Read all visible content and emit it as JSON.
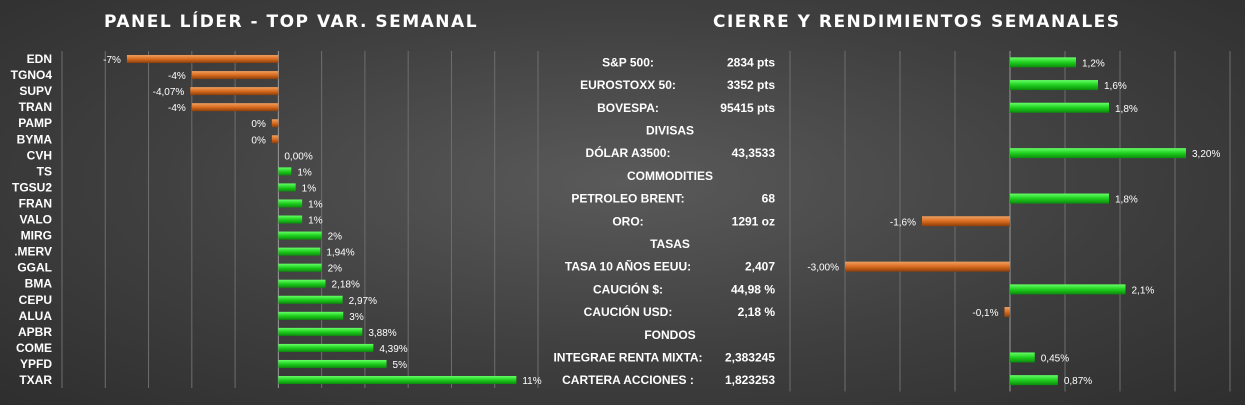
{
  "left_title": "PANEL LÍDER - TOP VAR. SEMANAL",
  "right_title": "CIERRE Y RENDIMIENTOS  SEMANALES",
  "colors": {
    "positive": "#1ecf1e",
    "negative": "#d96b1e",
    "grid": "#6e6e6e"
  },
  "chart_data": [
    {
      "type": "bar",
      "orientation": "horizontal",
      "title": "PANEL LÍDER - TOP VAR. SEMANAL",
      "categories": [
        "EDN",
        "TGNO4",
        "SUPV",
        "TRAN",
        "PAMP",
        "BYMA",
        "CVH",
        "TS",
        "TGSU2",
        "FRAN",
        "VALO",
        "MIRG",
        ".MERV",
        "GGAL",
        "BMA",
        "CEPU",
        "ALUA",
        "APBR",
        "COME",
        "YPFD",
        "TXAR"
      ],
      "values": [
        -7,
        -4,
        -4.07,
        -4,
        -0.3,
        -0.3,
        0,
        0.6,
        0.8,
        1.1,
        1.1,
        2,
        1.94,
        2,
        2.18,
        2.97,
        3,
        3.88,
        4.39,
        5,
        11
      ],
      "labels": [
        "-7%",
        "-4%",
        "-4,07%",
        "-4%",
        "0%",
        "0%",
        "0,00%",
        "1%",
        "1%",
        "1%",
        "1%",
        "2%",
        "1,94%",
        "2%",
        "2,18%",
        "2,97%",
        "3%",
        "3,88%",
        "4,39%",
        "5%",
        "11%"
      ],
      "xlim": [
        -10,
        12
      ],
      "grid": true
    },
    {
      "type": "bar",
      "orientation": "horizontal",
      "title": "CIERRE Y RENDIMIENTOS  SEMANALES",
      "rows": [
        {
          "kind": "item",
          "label": "S&P 500:",
          "value": "2834 pts",
          "pct": 1.2,
          "pct_label": "1,2%"
        },
        {
          "kind": "item",
          "label": "EUROSTOXX 50:",
          "value": "3352 pts",
          "pct": 1.6,
          "pct_label": "1,6%"
        },
        {
          "kind": "item",
          "label": "BOVESPA:",
          "value": "95415 pts",
          "pct": 1.8,
          "pct_label": "1,8%"
        },
        {
          "kind": "section",
          "label": "DIVISAS"
        },
        {
          "kind": "item",
          "label": "DÓLAR A3500:",
          "value": "43,3533",
          "pct": 3.2,
          "pct_label": "3,20%"
        },
        {
          "kind": "section",
          "label": "COMMODITIES"
        },
        {
          "kind": "item",
          "label": "PETROLEO BRENT:",
          "value": "68",
          "pct": 1.8,
          "pct_label": "1,8%"
        },
        {
          "kind": "item",
          "label": "ORO:",
          "value": "1291 oz",
          "pct": -1.6,
          "pct_label": "-1,6%"
        },
        {
          "kind": "section",
          "label": "TASAS"
        },
        {
          "kind": "item",
          "label": "TASA 10 AÑOS EEUU:",
          "value": "2,407",
          "pct": -3.0,
          "pct_label": "-3,00%"
        },
        {
          "kind": "item",
          "label": "CAUCIÓN $:",
          "value": "44,98 %",
          "pct": 2.1,
          "pct_label": "2,1%"
        },
        {
          "kind": "item",
          "label": "CAUCIÓN USD:",
          "value": "2,18 %",
          "pct": -0.1,
          "pct_label": "-0,1%"
        },
        {
          "kind": "section",
          "label": "FONDOS"
        },
        {
          "kind": "item",
          "label": "INTEGRAE RENTA MIXTA:",
          "value": "2,383245",
          "pct": 0.45,
          "pct_label": "0,45%"
        },
        {
          "kind": "item",
          "label": "CARTERA ACCIONES :",
          "value": "1,823253",
          "pct": 0.87,
          "pct_label": "0,87%"
        }
      ],
      "xlim": [
        -4,
        4
      ],
      "grid": true
    }
  ]
}
